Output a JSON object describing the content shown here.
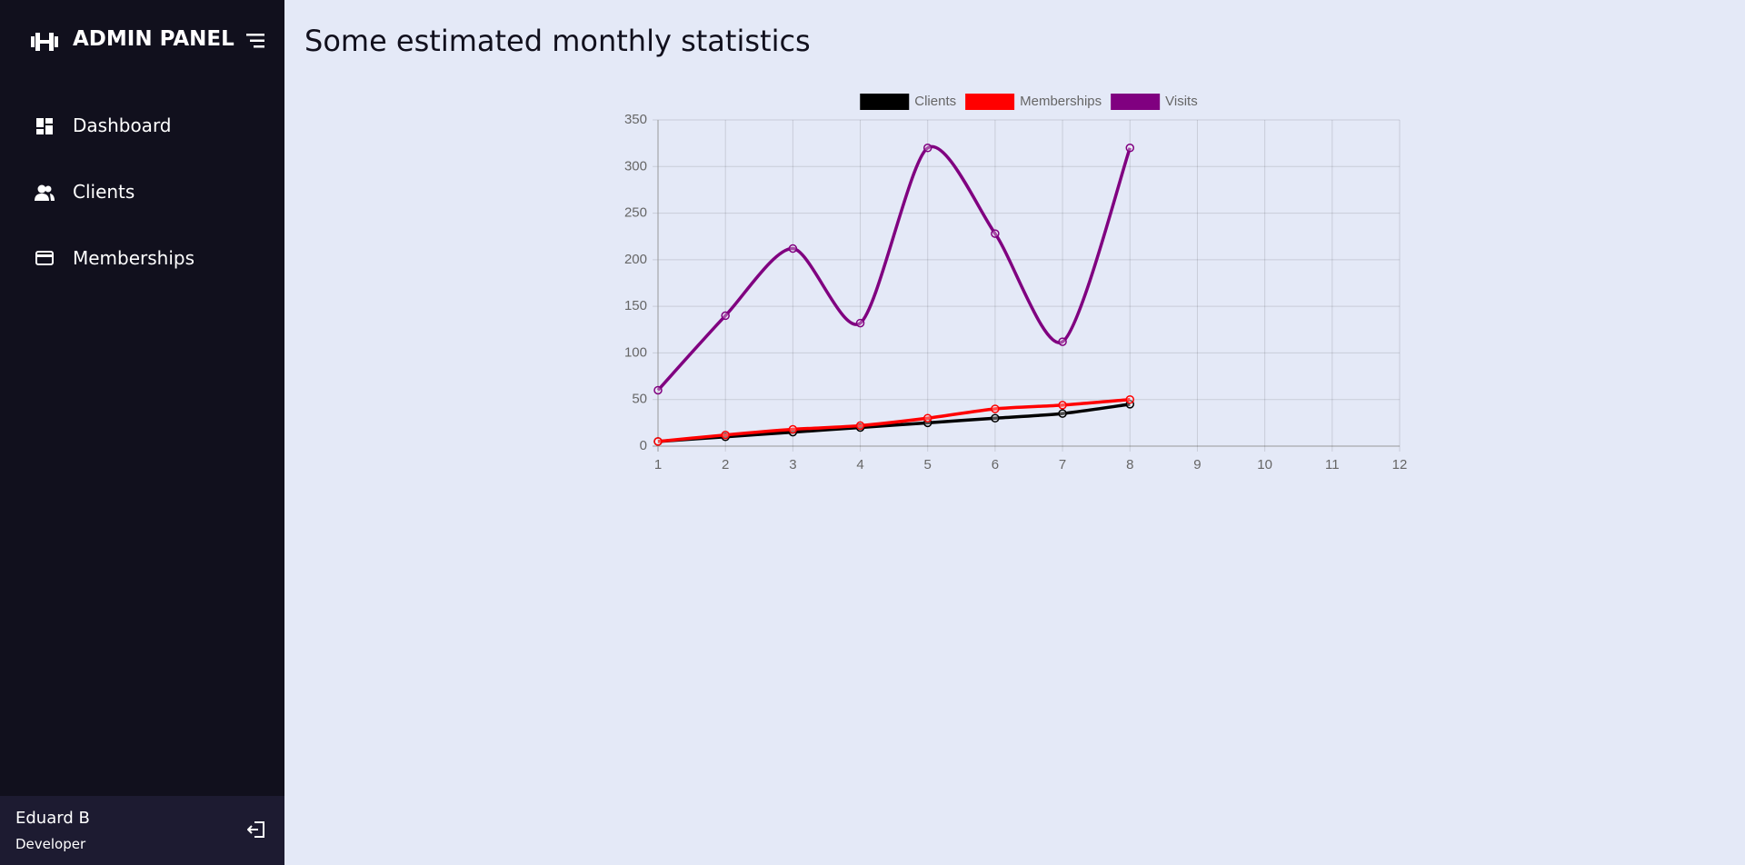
{
  "sidebar": {
    "brand": "ADMIN PANEL",
    "nav": [
      "Dashboard",
      "Clients",
      "Memberships"
    ],
    "user": {
      "name": "Eduard B",
      "role": "Developer"
    }
  },
  "page_title": "Some estimated monthly statistics",
  "chart_data": {
    "type": "line",
    "x": [
      1,
      2,
      3,
      4,
      5,
      6,
      7,
      8
    ],
    "series": [
      {
        "name": "Clients",
        "color": "#000000",
        "values": [
          5,
          10,
          15,
          20,
          25,
          30,
          35,
          45
        ]
      },
      {
        "name": "Memberships",
        "color": "#ff0000",
        "values": [
          5,
          12,
          18,
          22,
          30,
          40,
          44,
          50
        ]
      },
      {
        "name": "Visits",
        "color": "#800080",
        "values": [
          60,
          140,
          212,
          132,
          320,
          228,
          112,
          320
        ]
      }
    ],
    "xlim": [
      1,
      12
    ],
    "xticks": [
      1,
      2,
      3,
      4,
      5,
      6,
      7,
      8,
      9,
      10,
      11,
      12
    ],
    "ylim": [
      0,
      350
    ],
    "yticks": [
      0,
      50,
      100,
      150,
      200,
      250,
      300,
      350
    ],
    "grid": true,
    "legend": "top"
  }
}
